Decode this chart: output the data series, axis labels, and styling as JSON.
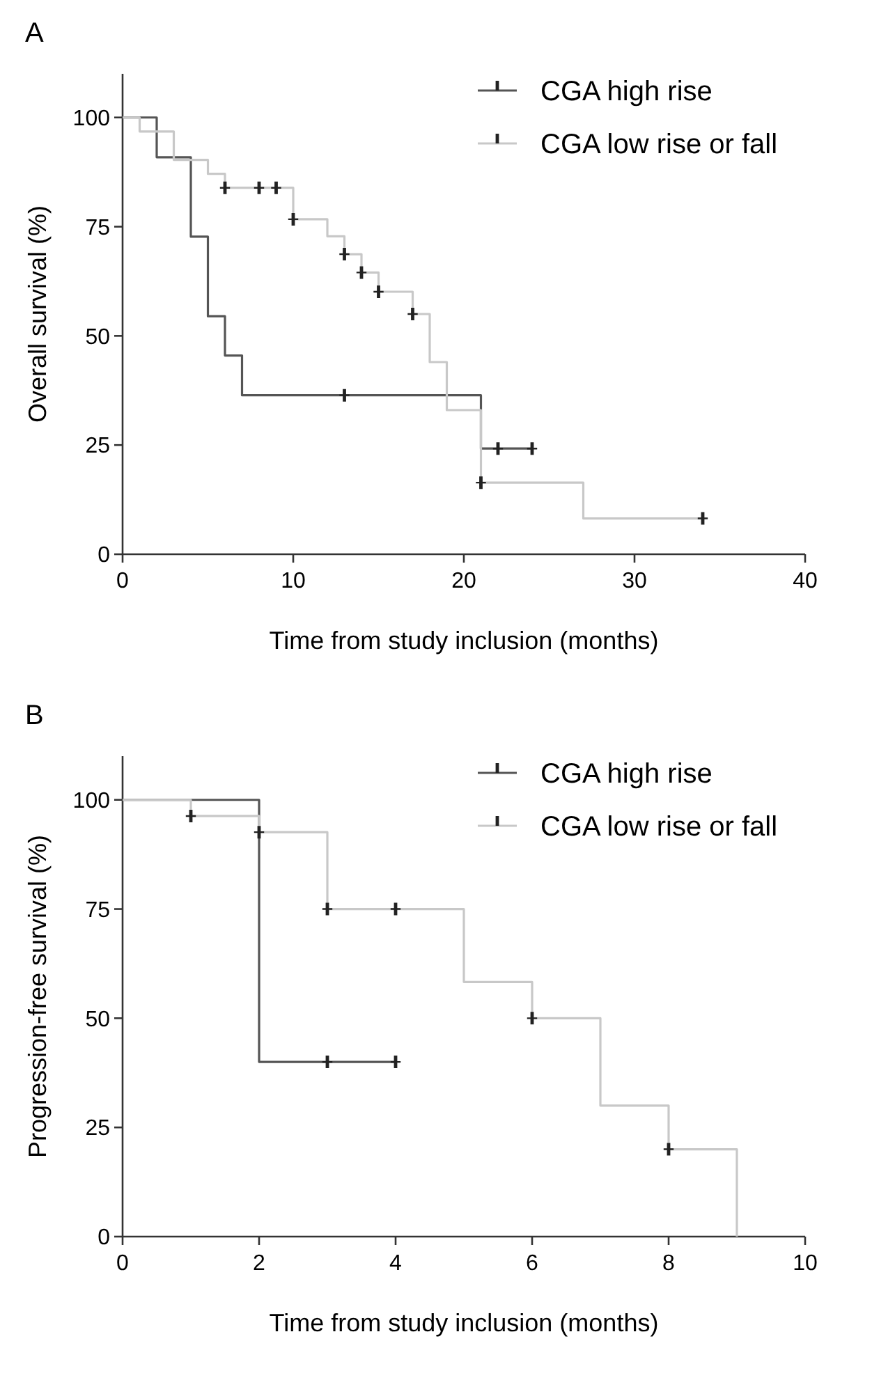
{
  "chart_data": [
    {
      "type": "step",
      "title": "A",
      "xlabel": "Time from study inclusion (months)",
      "ylabel": "Overall survival (%)",
      "xlim": [
        0,
        40
      ],
      "xticks": [
        0,
        10,
        20,
        30,
        40
      ],
      "ylim": [
        0,
        110
      ],
      "yticks": [
        0,
        25,
        50,
        75,
        100
      ],
      "grid": false,
      "legend": "top right",
      "line_style": "solid",
      "series": [
        {
          "name": "CGA high rise",
          "color": "#555555",
          "x": [
            0,
            2,
            4,
            5,
            6,
            7,
            21,
            24
          ],
          "values": [
            100,
            90.9,
            72.7,
            54.5,
            45.5,
            36.4,
            24.2,
            24.2
          ]
        },
        {
          "name": "CGA low rise or fall",
          "color": "#c8c8c8",
          "x": [
            0,
            1,
            3,
            5,
            6,
            10,
            12,
            13,
            14,
            15,
            17,
            18,
            19,
            21,
            27,
            34
          ],
          "values": [
            100,
            96.8,
            90.3,
            87.1,
            83.9,
            76.7,
            72.8,
            68.7,
            64.5,
            60.1,
            55.0,
            44.0,
            33.0,
            16.4,
            8.2,
            8.2
          ]
        },
        {
          "type": "scatter",
          "color": "#222222",
          "x": [
            13,
            22,
            24
          ],
          "values": [
            36.4,
            24.2,
            24.2
          ]
        },
        {
          "type": "scatter",
          "color": "#222222",
          "x": [
            6,
            8,
            9,
            10,
            13,
            14,
            15,
            17,
            21,
            34
          ],
          "values": [
            83.9,
            83.9,
            83.9,
            76.7,
            68.7,
            64.5,
            60.1,
            55.0,
            16.4,
            8.2
          ]
        }
      ]
    },
    {
      "type": "step",
      "title": "B",
      "xlabel": "Time from study inclusion (months)",
      "ylabel": "Progression-free survival (%)",
      "xlim": [
        0,
        10
      ],
      "xticks": [
        0,
        2,
        4,
        6,
        8,
        10
      ],
      "ylim": [
        0,
        110
      ],
      "yticks": [
        0,
        25,
        50,
        75,
        100
      ],
      "grid": false,
      "legend": "top right",
      "line_style": "solid",
      "series": [
        {
          "name": "CGA high rise",
          "color": "#555555",
          "x": [
            0,
            2,
            4
          ],
          "values": [
            100,
            40,
            40
          ]
        },
        {
          "name": "CGA low rise or fall",
          "color": "#c8c8c8",
          "x": [
            0,
            1,
            2,
            3,
            5,
            6,
            7,
            8,
            9
          ],
          "values": [
            100,
            96.3,
            92.6,
            75,
            58.3,
            50,
            30,
            20,
            0
          ]
        },
        {
          "type": "scatter",
          "color": "#222222",
          "x": [
            3,
            4
          ],
          "values": [
            40,
            40
          ]
        },
        {
          "type": "scatter",
          "color": "#222222",
          "x": [
            1,
            2,
            3,
            4,
            6,
            8
          ],
          "values": [
            96.3,
            92.6,
            75,
            75,
            50,
            20
          ]
        }
      ]
    }
  ]
}
